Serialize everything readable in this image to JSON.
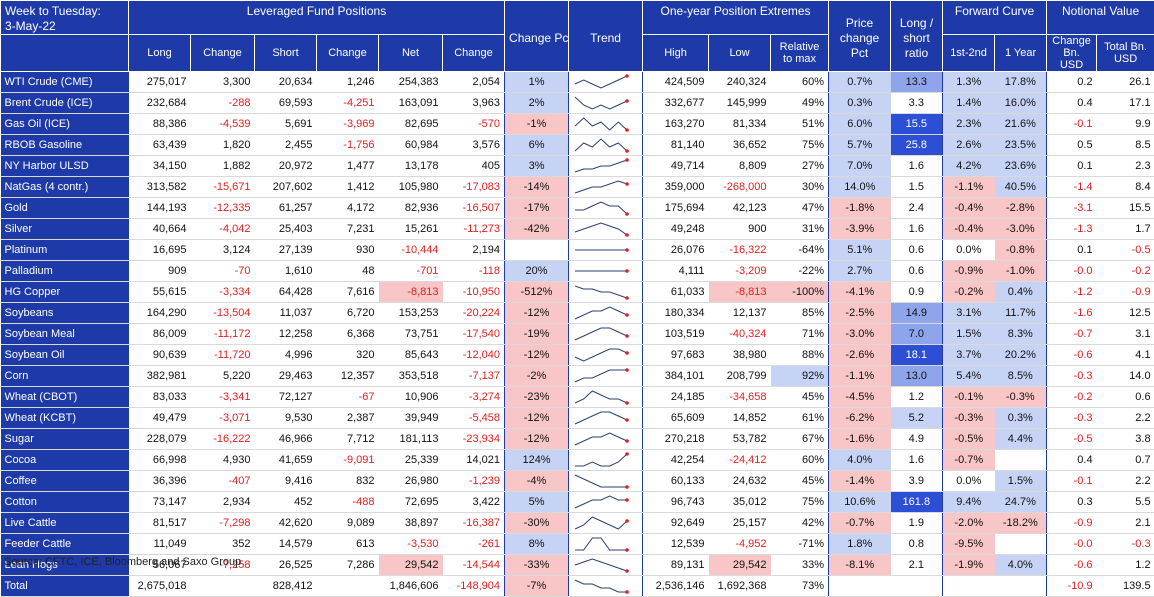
{
  "title": {
    "line1": "Week to Tuesday:",
    "line2": "3-May-22"
  },
  "groups": {
    "leveraged": "Leveraged Fund Positions",
    "extremes": "One-year Position Extremes",
    "price": "Price change Pct",
    "ratio": "Long / short ratio",
    "curve": "Forward Curve",
    "notional": "Notional Value"
  },
  "columns": {
    "long": "Long",
    "change1": "Change",
    "short": "Short",
    "change2": "Change",
    "net": "Net",
    "change3": "Change",
    "changepct": "Change Pct",
    "trend": "Trend",
    "high": "High",
    "low": "Low",
    "relmax": "Relative to max",
    "c1": "1st-2nd",
    "c2": "1 Year",
    "nchange": "Change Bn. USD",
    "ntotal": "Total Bn. USD"
  },
  "rows": [
    {
      "name": "WTI Crude (CME)",
      "long": "275,017",
      "ch1": "3,300",
      "short": "20,634",
      "ch2": "1,246",
      "net": "254,383",
      "ch3": "2,054",
      "pct": "1%",
      "high": "424,509",
      "low": "240,324",
      "rel": "60%",
      "price": "0.7%",
      "ratio": "13.3",
      "c1": "1.3%",
      "c2": "17.8%",
      "nch": "0.2",
      "ntot": "26.1",
      "spark": [
        3,
        4,
        3,
        2,
        3,
        4,
        5
      ]
    },
    {
      "name": "Brent Crude (ICE)",
      "long": "232,684",
      "ch1": "-288",
      "short": "69,593",
      "ch2": "-4,251",
      "net": "163,091",
      "ch3": "3,963",
      "pct": "2%",
      "high": "332,677",
      "low": "145,999",
      "rel": "49%",
      "price": "0.3%",
      "ratio": "3.3",
      "c1": "1.4%",
      "c2": "16.0%",
      "nch": "0.4",
      "ntot": "17.1",
      "spark": [
        5,
        3,
        2,
        3,
        2,
        3,
        4
      ]
    },
    {
      "name": "Gas Oil (ICE)",
      "long": "88,386",
      "ch1": "-4,539",
      "short": "5,691",
      "ch2": "-3,969",
      "net": "82,695",
      "ch3": "-570",
      "pct": "-1%",
      "high": "163,270",
      "low": "81,334",
      "rel": "51%",
      "price": "6.0%",
      "ratio": "15.5",
      "c1": "2.3%",
      "c2": "21.6%",
      "nch": "-0.1",
      "ntot": "9.9",
      "spark": [
        3,
        5,
        3,
        4,
        2,
        4,
        2
      ]
    },
    {
      "name": "RBOB Gasoline",
      "long": "63,439",
      "ch1": "1,820",
      "short": "2,455",
      "ch2": "-1,756",
      "net": "60,984",
      "ch3": "3,576",
      "pct": "6%",
      "high": "81,140",
      "low": "36,652",
      "rel": "75%",
      "price": "5.7%",
      "ratio": "25.8",
      "c1": "2.6%",
      "c2": "23.5%",
      "nch": "0.5",
      "ntot": "8.5",
      "spark": [
        2,
        4,
        3,
        5,
        3,
        4,
        2
      ]
    },
    {
      "name": "NY Harbor ULSD",
      "long": "34,150",
      "ch1": "1,882",
      "short": "20,972",
      "ch2": "1,477",
      "net": "13,178",
      "ch3": "405",
      "pct": "3%",
      "high": "49,714",
      "low": "8,809",
      "rel": "27%",
      "price": "7.0%",
      "ratio": "1.6",
      "c1": "4.2%",
      "c2": "23.6%",
      "nch": "0.1",
      "ntot": "2.3",
      "spark": [
        1,
        2,
        2,
        3,
        3,
        4,
        5
      ]
    },
    {
      "name": "NatGas (4 contr.)",
      "long": "313,582",
      "ch1": "-15,671",
      "short": "207,602",
      "ch2": "1,412",
      "net": "105,980",
      "ch3": "-17,083",
      "pct": "-14%",
      "high": "359,000",
      "low": "-268,000",
      "rel": "30%",
      "price": "14.0%",
      "ratio": "1.5",
      "c1": "-1.1%",
      "c2": "40.5%",
      "nch": "-1.4",
      "ntot": "8.4",
      "spark": [
        1,
        2,
        3,
        3,
        4,
        5,
        4
      ]
    },
    {
      "name": "Gold",
      "long": "144,193",
      "ch1": "-12,335",
      "short": "61,257",
      "ch2": "4,172",
      "net": "82,936",
      "ch3": "-16,507",
      "pct": "-17%",
      "high": "175,694",
      "low": "42,123",
      "rel": "47%",
      "price": "-1.8%",
      "ratio": "2.4",
      "c1": "-0.4%",
      "c2": "-2.8%",
      "nch": "-3.1",
      "ntot": "15.5",
      "spark": [
        3,
        3,
        4,
        5,
        4,
        4,
        2
      ]
    },
    {
      "name": "Silver",
      "long": "40,664",
      "ch1": "-4,042",
      "short": "25,403",
      "ch2": "7,231",
      "net": "15,261",
      "ch3": "-11,273",
      "pct": "-42%",
      "high": "49,248",
      "low": "900",
      "rel": "31%",
      "price": "-3.9%",
      "ratio": "1.6",
      "c1": "-0.4%",
      "c2": "-3.0%",
      "nch": "-1.3",
      "ntot": "1.7",
      "spark": [
        2,
        3,
        4,
        5,
        4,
        3,
        1
      ]
    },
    {
      "name": "Platinum",
      "long": "16,695",
      "ch1": "3,124",
      "short": "27,139",
      "ch2": "930",
      "net": "-10,444",
      "ch3": "2,194",
      "pct": "",
      "high": "26,076",
      "low": "-16,322",
      "rel": "-64%",
      "price": "5.1%",
      "ratio": "0.6",
      "c1": "0.0%",
      "c2": "-0.8%",
      "nch": "0.1",
      "ntot": "-0.5",
      "spark": [
        3,
        3,
        3,
        3,
        3,
        3,
        3
      ]
    },
    {
      "name": "Palladium",
      "long": "909",
      "ch1": "-70",
      "short": "1,610",
      "ch2": "48",
      "net": "-701",
      "ch3": "-118",
      "pct": "20%",
      "high": "4,111",
      "low": "-3,209",
      "rel": "-22%",
      "price": "2.7%",
      "ratio": "0.6",
      "c1": "-0.9%",
      "c2": "-1.0%",
      "nch": "-0.0",
      "ntot": "-0.2",
      "spark": [
        3,
        3,
        3,
        3,
        3,
        3,
        3
      ]
    },
    {
      "name": "HG Copper",
      "long": "55,615",
      "ch1": "-3,334",
      "short": "64,428",
      "ch2": "7,616",
      "net": "-8,813",
      "ch3": "-10,950",
      "pct": "-512%",
      "high": "61,033",
      "low": "-8,813",
      "rel": "-100%",
      "price": "-4.1%",
      "ratio": "0.9",
      "c1": "-0.2%",
      "c2": "0.4%",
      "nch": "-1.2",
      "ntot": "-0.9",
      "spark": [
        5,
        4,
        4,
        3,
        3,
        2,
        1
      ]
    },
    {
      "name": "Soybeans",
      "long": "164,290",
      "ch1": "-13,504",
      "short": "11,037",
      "ch2": "6,720",
      "net": "153,253",
      "ch3": "-20,224",
      "pct": "-12%",
      "high": "180,334",
      "low": "12,137",
      "rel": "85%",
      "price": "-2.5%",
      "ratio": "14.9",
      "c1": "3.1%",
      "c2": "11.7%",
      "nch": "-1.6",
      "ntot": "12.5",
      "spark": [
        2,
        3,
        4,
        4,
        5,
        4,
        3
      ]
    },
    {
      "name": "Soybean Meal",
      "long": "86,009",
      "ch1": "-11,172",
      "short": "12,258",
      "ch2": "6,368",
      "net": "73,751",
      "ch3": "-17,540",
      "pct": "-19%",
      "high": "103,519",
      "low": "-40,324",
      "rel": "71%",
      "price": "-3.0%",
      "ratio": "7.0",
      "c1": "1.5%",
      "c2": "8.3%",
      "nch": "-0.7",
      "ntot": "3.1",
      "spark": [
        2,
        3,
        4,
        5,
        5,
        4,
        3
      ]
    },
    {
      "name": "Soybean Oil",
      "long": "90,639",
      "ch1": "-11,720",
      "short": "4,996",
      "ch2": "320",
      "net": "85,643",
      "ch3": "-12,040",
      "pct": "-12%",
      "high": "97,683",
      "low": "38,980",
      "rel": "88%",
      "price": "-2.6%",
      "ratio": "18.1",
      "c1": "3.7%",
      "c2": "20.2%",
      "nch": "-0.6",
      "ntot": "4.1",
      "spark": [
        3,
        2,
        3,
        4,
        5,
        5,
        4
      ]
    },
    {
      "name": "Corn",
      "long": "382,981",
      "ch1": "5,220",
      "short": "29,463",
      "ch2": "12,357",
      "net": "353,518",
      "ch3": "-7,137",
      "pct": "-2%",
      "high": "384,101",
      "low": "208,799",
      "rel": "92%",
      "price": "-1.1%",
      "ratio": "13.0",
      "c1": "5.4%",
      "c2": "8.5%",
      "nch": "-0.3",
      "ntot": "14.0",
      "spark": [
        2,
        3,
        3,
        4,
        5,
        5,
        5
      ]
    },
    {
      "name": "Wheat (CBOT)",
      "long": "83,033",
      "ch1": "-3,341",
      "short": "72,127",
      "ch2": "-67",
      "net": "10,906",
      "ch3": "-3,274",
      "pct": "-23%",
      "high": "24,185",
      "low": "-34,658",
      "rel": "45%",
      "price": "-4.5%",
      "ratio": "1.2",
      "c1": "-0.1%",
      "c2": "-0.3%",
      "nch": "-0.2",
      "ntot": "0.6",
      "spark": [
        2,
        3,
        5,
        4,
        3,
        3,
        2
      ]
    },
    {
      "name": "Wheat (KCBT)",
      "long": "49,479",
      "ch1": "-3,071",
      "short": "9,530",
      "ch2": "2,387",
      "net": "39,949",
      "ch3": "-5,458",
      "pct": "-12%",
      "high": "65,609",
      "low": "14,852",
      "rel": "61%",
      "price": "-6.2%",
      "ratio": "5.2",
      "c1": "-0.3%",
      "c2": "0.3%",
      "nch": "-0.3",
      "ntot": "2.2",
      "spark": [
        2,
        3,
        4,
        5,
        5,
        4,
        3
      ]
    },
    {
      "name": "Sugar",
      "long": "228,079",
      "ch1": "-16,222",
      "short": "46,966",
      "ch2": "7,712",
      "net": "181,113",
      "ch3": "-23,934",
      "pct": "-12%",
      "high": "270,218",
      "low": "53,782",
      "rel": "67%",
      "price": "-1.6%",
      "ratio": "4.9",
      "c1": "-0.5%",
      "c2": "4.4%",
      "nch": "-0.5",
      "ntot": "3.8",
      "spark": [
        2,
        3,
        4,
        4,
        5,
        4,
        3
      ]
    },
    {
      "name": "Cocoa",
      "long": "66,998",
      "ch1": "4,930",
      "short": "41,659",
      "ch2": "-9,091",
      "net": "25,339",
      "ch3": "14,021",
      "pct": "124%",
      "high": "42,254",
      "low": "-24,412",
      "rel": "60%",
      "price": "4.0%",
      "ratio": "1.6",
      "c1": "-0.7%",
      "c2": "",
      "nch": "0.4",
      "ntot": "0.7",
      "spark": [
        2,
        2,
        3,
        2,
        2,
        3,
        5
      ]
    },
    {
      "name": "Coffee",
      "long": "36,396",
      "ch1": "-407",
      "short": "9,416",
      "ch2": "832",
      "net": "26,980",
      "ch3": "-1,239",
      "pct": "-4%",
      "high": "60,133",
      "low": "24,632",
      "rel": "45%",
      "price": "-1.4%",
      "ratio": "3.9",
      "c1": "0.0%",
      "c2": "1.5%",
      "nch": "-0.1",
      "ntot": "2.2",
      "spark": [
        5,
        4,
        3,
        2,
        2,
        2,
        2
      ]
    },
    {
      "name": "Cotton",
      "long": "73,147",
      "ch1": "2,934",
      "short": "452",
      "ch2": "-488",
      "net": "72,695",
      "ch3": "3,422",
      "pct": "5%",
      "high": "96,743",
      "low": "35,012",
      "rel": "75%",
      "price": "10.6%",
      "ratio": "161.8",
      "c1": "9.4%",
      "c2": "24.7%",
      "nch": "0.3",
      "ntot": "5.5",
      "spark": [
        2,
        3,
        4,
        4,
        5,
        4,
        4
      ]
    },
    {
      "name": "Live Cattle",
      "long": "81,517",
      "ch1": "-7,298",
      "short": "42,620",
      "ch2": "9,089",
      "net": "38,897",
      "ch3": "-16,387",
      "pct": "-30%",
      "high": "92,649",
      "low": "25,157",
      "rel": "42%",
      "price": "-0.7%",
      "ratio": "1.9",
      "c1": "-2.0%",
      "c2": "-18.2%",
      "nch": "-0.9",
      "ntot": "2.1",
      "spark": [
        2,
        3,
        5,
        4,
        3,
        2,
        4
      ]
    },
    {
      "name": "Feeder Cattle",
      "long": "11,049",
      "ch1": "352",
      "short": "14,579",
      "ch2": "613",
      "net": "-3,530",
      "ch3": "-261",
      "pct": "8%",
      "high": "12,539",
      "low": "-4,952",
      "rel": "-71%",
      "price": "1.8%",
      "ratio": "0.8",
      "c1": "-9.5%",
      "c2": "",
      "nch": "-0.0",
      "ntot": "-0.3",
      "spark": [
        3,
        3,
        4,
        4,
        3,
        3,
        3
      ]
    },
    {
      "name": "Lean Hogs",
      "long": "56,067",
      "ch1": "-7,258",
      "short": "26,525",
      "ch2": "7,286",
      "net": "29,542",
      "ch3": "-14,544",
      "pct": "-33%",
      "high": "89,131",
      "low": "29,542",
      "rel": "33%",
      "price": "-8.1%",
      "ratio": "2.1",
      "c1": "-1.9%",
      "c2": "4.0%",
      "nch": "-0.6",
      "ntot": "1.2",
      "spark": [
        3,
        4,
        5,
        4,
        3,
        2,
        1
      ]
    },
    {
      "name": "Total",
      "long": "2,675,018",
      "ch1": "",
      "short": "828,412",
      "ch2": "",
      "net": "1,846,606",
      "ch3": "-148,904",
      "pct": "-7%",
      "high": "2,536,146",
      "low": "1,692,368",
      "rel": "73%",
      "price": "",
      "ratio": "",
      "c1": "",
      "c2": "",
      "nch": "-10.9",
      "ntot": "139.5",
      "spark": [
        4,
        3,
        3,
        2,
        2,
        1,
        1
      ]
    }
  ],
  "source": "Source: CFTC, ICE, Bloomberg and Saxo Group",
  "colors": {
    "header": "#1d3aa8",
    "negative": "#e02020",
    "pink": "#f8c6c6",
    "lightblue": "#c7d3f5",
    "darkblue": "#2d4fd6"
  }
}
